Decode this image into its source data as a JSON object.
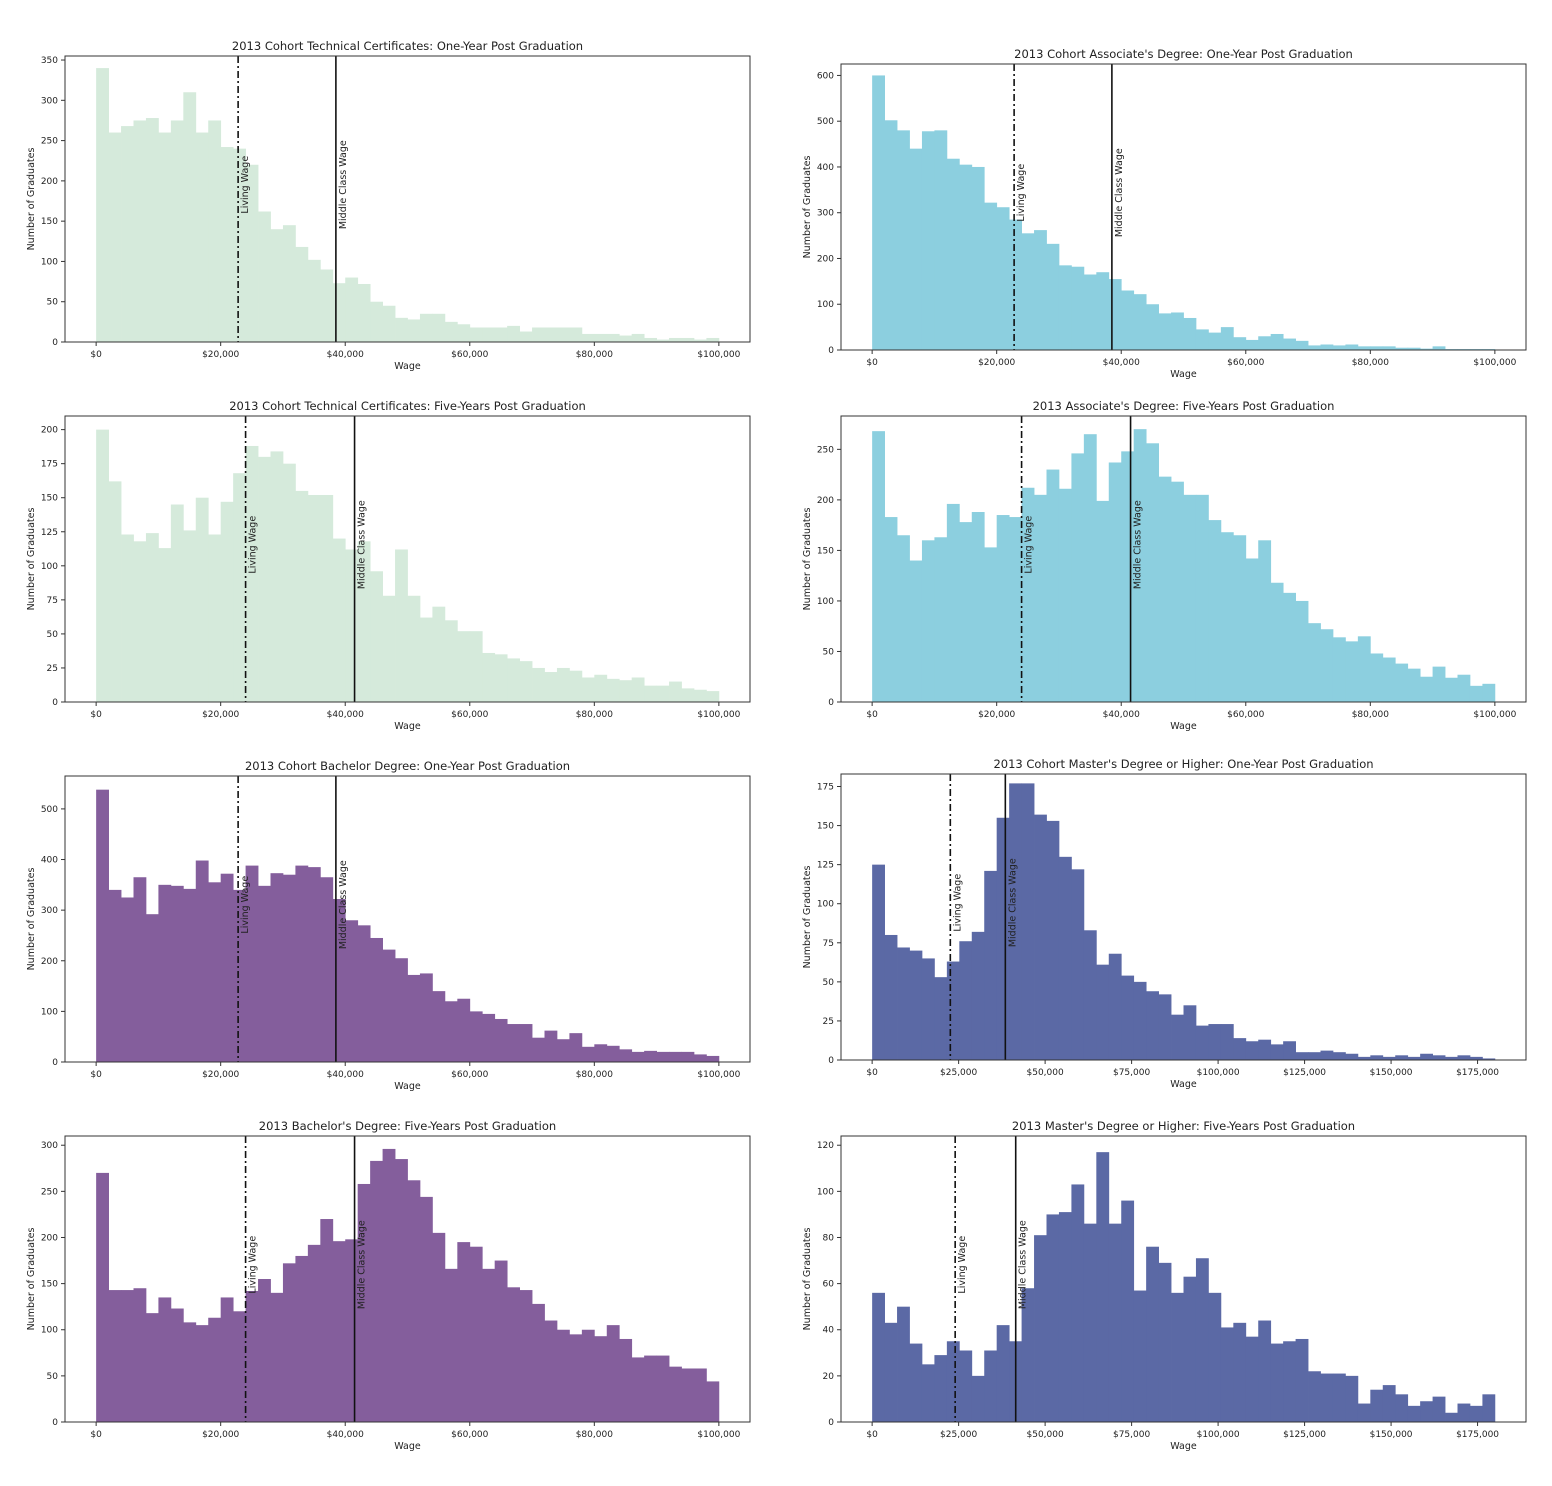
{
  "figure": {
    "panels": [
      {
        "id": "tc1",
        "title": "2013 Cohort Technical Certificates: One-Year Post Graduation"
      },
      {
        "id": "as1",
        "title": "2013 Cohort Associate's Degree: One-Year Post Graduation"
      },
      {
        "id": "tc5",
        "title": "2013 Cohort Technical Certificates: Five-Years Post Graduation"
      },
      {
        "id": "as5",
        "title": "2013 Associate's Degree: Five-Years Post Graduation"
      },
      {
        "id": "ba1",
        "title": "2013 Cohort Bachelor Degree: One-Year Post Graduation"
      },
      {
        "id": "ma1",
        "title": "2013 Cohort Master's Degree or Higher: One-Year Post Graduation"
      },
      {
        "id": "ba5",
        "title": "2013 Bachelor's Degree: Five-Years Post Graduation"
      },
      {
        "id": "ma5",
        "title": "2013 Master's Degree or Higher: Five-Years Post Graduation"
      }
    ]
  },
  "chart_data": [
    {
      "type": "bar",
      "subtype": "histogram",
      "title": "2013 Cohort Technical Certificates: One-Year Post Graduation",
      "xlabel": "Wage",
      "ylabel": "Number of Graduates",
      "color": "#d5eadb",
      "xlim": [
        -5000,
        105000
      ],
      "ylim": [
        0,
        355
      ],
      "xticks": [
        0,
        20000,
        40000,
        60000,
        80000,
        100000
      ],
      "xtick_labels": [
        "$0",
        "$20,000",
        "$40,000",
        "$60,000",
        "$80,000",
        "$100,000"
      ],
      "yticks": [
        0,
        50,
        100,
        150,
        200,
        250,
        300,
        350
      ],
      "ytick_labels": [
        "0",
        "50",
        "100",
        "150",
        "200",
        "250",
        "300",
        "350"
      ],
      "bin_start": 0,
      "bin_width": 2000,
      "values": [
        340,
        260,
        268,
        275,
        278,
        260,
        275,
        310,
        260,
        275,
        242,
        240,
        220,
        162,
        140,
        145,
        118,
        102,
        90,
        73,
        80,
        72,
        50,
        45,
        30,
        28,
        35,
        35,
        25,
        22,
        18,
        18,
        18,
        20,
        13,
        18,
        18,
        18,
        18,
        10,
        10,
        10,
        8,
        10,
        5,
        3,
        5,
        5,
        3,
        5
      ],
      "vlines": [
        {
          "x": 22800,
          "style": "dashdot",
          "label": "Living Wage"
        },
        {
          "x": 38500,
          "style": "solid",
          "label": "Middle Class Wage"
        }
      ]
    },
    {
      "type": "bar",
      "subtype": "histogram",
      "title": "2013 Cohort Associate's Degree: One-Year Post Graduation",
      "xlabel": "Wage",
      "ylabel": "Number of Graduates",
      "color": "#8ccfdf",
      "xlim": [
        -5000,
        105000
      ],
      "ylim": [
        0,
        625
      ],
      "xticks": [
        0,
        20000,
        40000,
        60000,
        80000,
        100000
      ],
      "xtick_labels": [
        "$0",
        "$20,000",
        "$40,000",
        "$60,000",
        "$80,000",
        "$100,000"
      ],
      "yticks": [
        0,
        100,
        200,
        300,
        400,
        500,
        600
      ],
      "ytick_labels": [
        "0",
        "100",
        "200",
        "300",
        "400",
        "500",
        "600"
      ],
      "bin_start": 0,
      "bin_width": 2000,
      "values": [
        600,
        502,
        480,
        440,
        478,
        480,
        418,
        405,
        400,
        322,
        312,
        285,
        255,
        262,
        232,
        185,
        182,
        165,
        170,
        155,
        130,
        122,
        100,
        80,
        82,
        70,
        45,
        38,
        50,
        28,
        22,
        30,
        35,
        25,
        20,
        10,
        12,
        10,
        12,
        8,
        8,
        8,
        5,
        5,
        3,
        8,
        2,
        2,
        2,
        2
      ],
      "vlines": [
        {
          "x": 22800,
          "style": "dashdot",
          "label": "Living Wage"
        },
        {
          "x": 38500,
          "style": "solid",
          "label": "Middle Class Wage"
        }
      ]
    },
    {
      "type": "bar",
      "subtype": "histogram",
      "title": "2013 Cohort Technical Certificates: Five-Years Post Graduation",
      "xlabel": "Wage",
      "ylabel": "Number of Graduates",
      "color": "#d5eadb",
      "xlim": [
        -5000,
        105000
      ],
      "ylim": [
        0,
        210
      ],
      "xticks": [
        0,
        20000,
        40000,
        60000,
        80000,
        100000
      ],
      "xtick_labels": [
        "$0",
        "$20,000",
        "$40,000",
        "$60,000",
        "$80,000",
        "$100,000"
      ],
      "yticks": [
        0,
        25,
        50,
        75,
        100,
        125,
        150,
        175,
        200
      ],
      "ytick_labels": [
        "0",
        "25",
        "50",
        "75",
        "100",
        "125",
        "150",
        "175",
        "200"
      ],
      "bin_start": 0,
      "bin_width": 2000,
      "values": [
        200,
        162,
        123,
        118,
        124,
        113,
        145,
        126,
        150,
        123,
        147,
        168,
        188,
        180,
        184,
        175,
        155,
        152,
        152,
        120,
        112,
        118,
        96,
        78,
        112,
        78,
        62,
        70,
        60,
        52,
        52,
        36,
        35,
        32,
        30,
        25,
        22,
        25,
        23,
        18,
        20,
        17,
        16,
        18,
        12,
        12,
        15,
        10,
        9,
        8
      ],
      "vlines": [
        {
          "x": 24000,
          "style": "dashdot",
          "label": "Living Wage"
        },
        {
          "x": 41500,
          "style": "solid",
          "label": "Middle Class Wage"
        }
      ]
    },
    {
      "type": "bar",
      "subtype": "histogram",
      "title": "2013 Associate's Degree: Five-Years Post Graduation",
      "xlabel": "Wage",
      "ylabel": "Number of Graduates",
      "color": "#8ccfdf",
      "xlim": [
        -5000,
        105000
      ],
      "ylim": [
        0,
        283
      ],
      "xticks": [
        0,
        20000,
        40000,
        60000,
        80000,
        100000
      ],
      "xtick_labels": [
        "$0",
        "$20,000",
        "$40,000",
        "$60,000",
        "$80,000",
        "$100,000"
      ],
      "yticks": [
        0,
        50,
        100,
        150,
        200,
        250
      ],
      "ytick_labels": [
        "0",
        "50",
        "100",
        "150",
        "200",
        "250"
      ],
      "bin_start": 0,
      "bin_width": 2000,
      "values": [
        268,
        183,
        165,
        140,
        160,
        163,
        196,
        178,
        188,
        153,
        185,
        183,
        212,
        205,
        230,
        211,
        246,
        265,
        199,
        237,
        248,
        270,
        256,
        223,
        218,
        205,
        205,
        180,
        168,
        165,
        142,
        160,
        118,
        108,
        100,
        78,
        72,
        64,
        60,
        65,
        48,
        44,
        38,
        33,
        25,
        35,
        24,
        27,
        16,
        18
      ],
      "vlines": [
        {
          "x": 24000,
          "style": "dashdot",
          "label": "Living Wage"
        },
        {
          "x": 41500,
          "style": "solid",
          "label": "Middle Class Wage"
        }
      ]
    },
    {
      "type": "bar",
      "subtype": "histogram",
      "title": "2013 Cohort Bachelor Degree: One-Year Post Graduation",
      "xlabel": "Wage",
      "ylabel": "Number of Graduates",
      "color": "#845e9c",
      "xlim": [
        -5000,
        105000
      ],
      "ylim": [
        0,
        565
      ],
      "xticks": [
        0,
        20000,
        40000,
        60000,
        80000,
        100000
      ],
      "xtick_labels": [
        "$0",
        "$20,000",
        "$40,000",
        "$60,000",
        "$80,000",
        "$100,000"
      ],
      "yticks": [
        0,
        100,
        200,
        300,
        400,
        500
      ],
      "ytick_labels": [
        "0",
        "100",
        "200",
        "300",
        "400",
        "500"
      ],
      "bin_start": 0,
      "bin_width": 2000,
      "values": [
        538,
        340,
        325,
        365,
        292,
        350,
        348,
        342,
        398,
        355,
        372,
        340,
        388,
        348,
        373,
        370,
        388,
        385,
        365,
        322,
        280,
        270,
        245,
        222,
        205,
        172,
        175,
        140,
        120,
        125,
        100,
        95,
        85,
        75,
        75,
        48,
        62,
        45,
        57,
        30,
        35,
        32,
        25,
        20,
        22,
        20,
        20,
        20,
        15,
        12
      ],
      "vlines": [
        {
          "x": 22800,
          "style": "dashdot",
          "label": "Living Wage"
        },
        {
          "x": 38500,
          "style": "solid",
          "label": "Middle Class Wage"
        }
      ]
    },
    {
      "type": "bar",
      "subtype": "histogram",
      "title": "2013 Cohort Master's Degree or Higher: One-Year Post Graduation",
      "xlabel": "Wage",
      "ylabel": "Number of Graduates",
      "color": "#5b69a5",
      "xlim": [
        -9000,
        189000
      ],
      "ylim": [
        0,
        183
      ],
      "xticks": [
        0,
        25000,
        50000,
        75000,
        100000,
        125000,
        150000,
        175000
      ],
      "xtick_labels": [
        "$0",
        "$25,000",
        "$50,000",
        "$75,000",
        "$100,000",
        "$125,000",
        "$150,000",
        "$175,000"
      ],
      "yticks": [
        0,
        25,
        50,
        75,
        100,
        125,
        150,
        175
      ],
      "ytick_labels": [
        "0",
        "25",
        "50",
        "75",
        "100",
        "125",
        "150",
        "175"
      ],
      "bin_start": 0,
      "bin_width": 3600,
      "values": [
        125,
        80,
        72,
        70,
        65,
        53,
        63,
        76,
        82,
        121,
        155,
        177,
        177,
        157,
        153,
        130,
        122,
        83,
        61,
        68,
        54,
        50,
        44,
        42,
        29,
        35,
        22,
        23,
        23,
        14,
        12,
        13,
        10,
        12,
        5,
        5,
        6,
        5,
        4,
        2,
        3,
        2,
        3,
        2,
        4,
        3,
        2,
        3,
        2,
        1
      ],
      "vlines": [
        {
          "x": 22600,
          "style": "dashdot",
          "label": "Living Wage"
        },
        {
          "x": 38500,
          "style": "solid",
          "label": "Middle Class Wage"
        }
      ]
    },
    {
      "type": "bar",
      "subtype": "histogram",
      "title": "2013 Bachelor's Degree: Five-Years Post Graduation",
      "xlabel": "Wage",
      "ylabel": "Number of Graduates",
      "color": "#845e9c",
      "xlim": [
        -5000,
        105000
      ],
      "ylim": [
        0,
        310
      ],
      "xticks": [
        0,
        20000,
        40000,
        60000,
        80000,
        100000
      ],
      "xtick_labels": [
        "$0",
        "$20,000",
        "$40,000",
        "$60,000",
        "$80,000",
        "$100,000"
      ],
      "yticks": [
        0,
        50,
        100,
        150,
        200,
        250,
        300
      ],
      "ytick_labels": [
        "0",
        "50",
        "100",
        "150",
        "200",
        "250",
        "300"
      ],
      "bin_start": 0,
      "bin_width": 2000,
      "values": [
        270,
        143,
        143,
        145,
        118,
        135,
        123,
        108,
        105,
        113,
        135,
        120,
        142,
        155,
        140,
        172,
        180,
        192,
        220,
        196,
        198,
        258,
        283,
        296,
        285,
        262,
        244,
        205,
        166,
        195,
        190,
        166,
        175,
        146,
        143,
        128,
        110,
        100,
        95,
        100,
        93,
        105,
        90,
        70,
        72,
        72,
        60,
        58,
        58,
        44
      ],
      "vlines": [
        {
          "x": 24000,
          "style": "dashdot",
          "label": "Living Wage"
        },
        {
          "x": 41500,
          "style": "solid",
          "label": "Middle Class Wage"
        }
      ]
    },
    {
      "type": "bar",
      "subtype": "histogram",
      "title": "2013 Master's Degree or Higher: Five-Years Post Graduation",
      "xlabel": "Wage",
      "ylabel": "Number of Graduates",
      "color": "#5b69a5",
      "xlim": [
        -9000,
        189000
      ],
      "ylim": [
        0,
        124
      ],
      "xticks": [
        0,
        25000,
        50000,
        75000,
        100000,
        125000,
        150000,
        175000
      ],
      "xtick_labels": [
        "$0",
        "$25,000",
        "$50,000",
        "$75,000",
        "$100,000",
        "$125,000",
        "$150,000",
        "$175,000"
      ],
      "yticks": [
        0,
        20,
        40,
        60,
        80,
        100,
        120
      ],
      "ytick_labels": [
        "0",
        "20",
        "40",
        "60",
        "80",
        "100",
        "120"
      ],
      "bin_start": 0,
      "bin_width": 3600,
      "values": [
        56,
        43,
        50,
        34,
        25,
        29,
        35,
        31,
        20,
        31,
        42,
        35,
        58,
        81,
        90,
        91,
        103,
        86,
        117,
        86,
        96,
        57,
        76,
        69,
        56,
        63,
        71,
        56,
        41,
        43,
        37,
        44,
        34,
        35,
        36,
        22,
        21,
        21,
        20,
        8,
        14,
        16,
        12,
        7,
        9,
        11,
        4,
        8,
        7,
        12
      ],
      "vlines": [
        {
          "x": 24000,
          "style": "dashdot",
          "label": "Living Wage"
        },
        {
          "x": 41500,
          "style": "solid",
          "label": "Middle Class Wage"
        }
      ]
    }
  ]
}
